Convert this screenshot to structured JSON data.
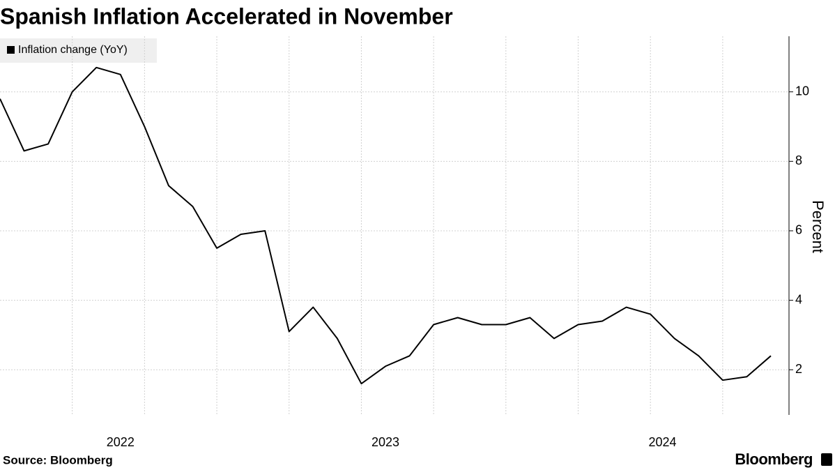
{
  "chart_data": {
    "type": "line",
    "title": "Spanish Inflation Accelerated in November",
    "y_label": "Percent",
    "source": "Source: Bloomberg",
    "brand": "Bloomberg",
    "categories": [
      "2022",
      "2022",
      "2022",
      "2022",
      "2022",
      "2022",
      "2022",
      "2022",
      "2022",
      "2022",
      "2023",
      "2023",
      "2023",
      "2023",
      "2023",
      "2023",
      "2023",
      "2023",
      "2023",
      "2023",
      "2023",
      "2023",
      "2024",
      "2024",
      "2024",
      "2024",
      "2024",
      "2024",
      "2024",
      "2024",
      "2024",
      "2024",
      "2024"
    ],
    "series": [
      {
        "name": "Inflation change (YoY)",
        "color": "#000000",
        "values": [
          9.8,
          8.3,
          8.5,
          10.0,
          10.7,
          10.5,
          9.0,
          7.3,
          6.7,
          5.5,
          5.9,
          6.0,
          3.1,
          3.8,
          2.9,
          1.6,
          2.1,
          2.4,
          3.3,
          3.5,
          3.3,
          3.3,
          3.5,
          2.9,
          3.3,
          3.4,
          3.8,
          3.6,
          2.9,
          2.4,
          1.7,
          1.8,
          2.4
        ]
      }
    ],
    "ylim": [
      0.7,
      11.6
    ],
    "yticks": [
      2,
      4,
      6,
      8,
      10
    ],
    "grid": true
  }
}
